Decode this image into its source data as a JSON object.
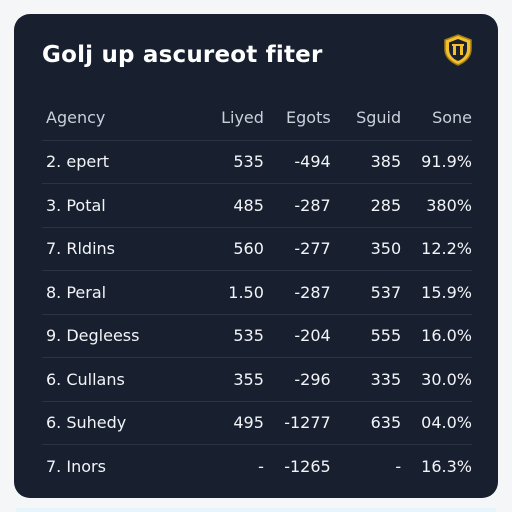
{
  "header": {
    "title": "Golj up ascureot fiter",
    "badge_icon": "shield-badge-icon",
    "badge_color": "#f2c12e"
  },
  "table": {
    "columns": [
      "Agency",
      "Liyed",
      "Egots",
      "Sguid",
      "Sone"
    ],
    "rows": [
      [
        "2. epert",
        "535",
        "-494",
        "385",
        "91.9%"
      ],
      [
        "3. Potal",
        "485",
        "-287",
        "285",
        "380%"
      ],
      [
        "7. Rldins",
        "560",
        "-277",
        "350",
        "12.2%"
      ],
      [
        "8. Peral",
        "1.50",
        "-287",
        "537",
        "15.9%"
      ],
      [
        "9. Degleess",
        "535",
        "-204",
        "555",
        "16.0%"
      ],
      [
        "6. Cullans",
        "355",
        "-296",
        "335",
        "30.0%"
      ],
      [
        "6. Suhedy",
        "495",
        "-1277",
        "635",
        "04.0%"
      ],
      [
        "7. Inors",
        "-",
        "-1265",
        "-",
        "16.3%"
      ]
    ]
  },
  "colors": {
    "card_bg": "#182030",
    "page_bg": "#f5f6f7",
    "text": "#f2f4f8",
    "header_text": "#c9d0da"
  }
}
